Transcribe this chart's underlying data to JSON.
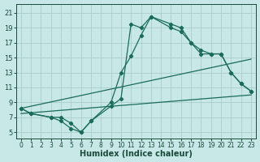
{
  "xlabel": "Humidex (Indice chaleur)",
  "xlim": [
    -0.5,
    23.5
  ],
  "ylim": [
    4.2,
    22.2
  ],
  "yticks": [
    5,
    7,
    9,
    11,
    13,
    15,
    17,
    19,
    21
  ],
  "bg_color": "#c8e8e8",
  "grid_color": "#a8cccc",
  "line_color": "#1a6b5a",
  "series1": {
    "x": [
      0,
      1,
      3,
      4,
      5,
      6,
      7,
      9,
      10,
      11,
      12,
      13,
      15,
      16,
      17,
      18,
      19,
      20,
      21,
      22,
      23
    ],
    "y": [
      8.2,
      7.5,
      7.0,
      7.0,
      6.2,
      5.0,
      6.5,
      9.0,
      13.0,
      15.2,
      18.0,
      20.5,
      19.5,
      19.0,
      17.0,
      15.5,
      15.5,
      15.5,
      13.0,
      11.5,
      10.5
    ]
  },
  "series2": {
    "x": [
      0,
      1,
      3,
      4,
      5,
      6,
      7,
      9,
      10,
      11,
      12,
      13,
      15,
      16,
      17,
      18,
      19,
      20,
      21,
      22,
      23
    ],
    "y": [
      8.2,
      7.5,
      7.0,
      6.5,
      5.5,
      5.0,
      6.5,
      8.5,
      9.5,
      19.5,
      19.0,
      20.5,
      19.0,
      18.5,
      17.0,
      16.0,
      15.5,
      15.5,
      13.0,
      11.5,
      10.5
    ]
  },
  "line3": {
    "x": [
      0,
      23
    ],
    "y": [
      7.5,
      10.0
    ]
  },
  "line4": {
    "x": [
      0,
      23
    ],
    "y": [
      8.2,
      14.8
    ]
  }
}
